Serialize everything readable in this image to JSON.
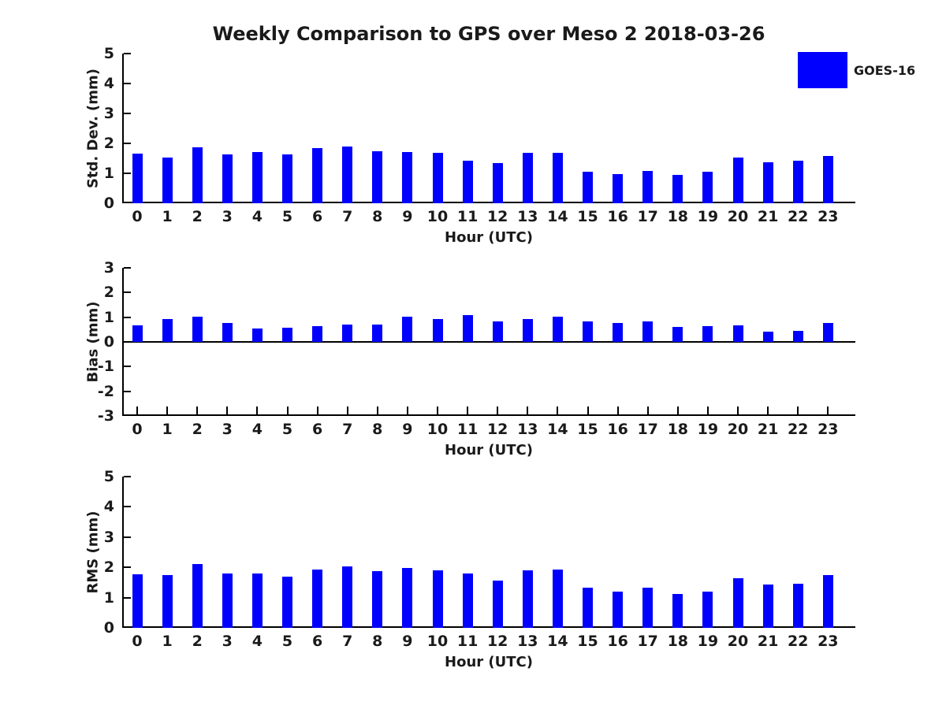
{
  "title": "Weekly Comparison to GPS over Meso 2 2018-03-26",
  "legend": {
    "label": "GOES-16",
    "color": "#0000FF",
    "position": "top-right"
  },
  "colors": {
    "bar": "#0000FF",
    "axis": "#000000",
    "text": "#1a1a1a",
    "background": "#ffffff"
  },
  "chart_data": [
    {
      "type": "bar",
      "name": "std-dev",
      "title": "",
      "ylabel": "Std. Dev. (mm)",
      "xlabel": "Hour (UTC)",
      "ylim": [
        0,
        5
      ],
      "ytick_step": 1,
      "grid": false,
      "categories": [
        "0",
        "1",
        "2",
        "3",
        "4",
        "5",
        "6",
        "7",
        "8",
        "9",
        "10",
        "11",
        "12",
        "13",
        "14",
        "15",
        "16",
        "17",
        "18",
        "19",
        "20",
        "21",
        "22",
        "23"
      ],
      "values": [
        1.65,
        1.52,
        1.88,
        1.63,
        1.72,
        1.63,
        1.83,
        1.9,
        1.75,
        1.7,
        1.68,
        1.42,
        1.33,
        1.68,
        1.68,
        1.05,
        0.97,
        1.08,
        0.96,
        1.04,
        1.52,
        1.38,
        1.42,
        1.58
      ],
      "series_name": "GOES-16"
    },
    {
      "type": "bar",
      "name": "bias",
      "title": "",
      "ylabel": "Bias (mm)",
      "xlabel": "Hour (UTC)",
      "ylim": [
        -3,
        3
      ],
      "ytick_step": 1,
      "grid": false,
      "categories": [
        "0",
        "1",
        "2",
        "3",
        "4",
        "5",
        "6",
        "7",
        "8",
        "9",
        "10",
        "11",
        "12",
        "13",
        "14",
        "15",
        "16",
        "17",
        "18",
        "19",
        "20",
        "21",
        "22",
        "23"
      ],
      "values": [
        0.67,
        0.93,
        1.01,
        0.78,
        0.53,
        0.58,
        0.64,
        0.7,
        0.7,
        1.01,
        0.93,
        1.07,
        0.84,
        0.92,
        1.02,
        0.82,
        0.77,
        0.82,
        0.61,
        0.63,
        0.67,
        0.43,
        0.46,
        0.76
      ],
      "series_name": "GOES-16"
    },
    {
      "type": "bar",
      "name": "rms",
      "title": "",
      "ylabel": "RMS (mm)",
      "xlabel": "Hour (UTC)",
      "ylim": [
        0,
        5
      ],
      "ytick_step": 1,
      "grid": false,
      "categories": [
        "0",
        "1",
        "2",
        "3",
        "4",
        "5",
        "6",
        "7",
        "8",
        "9",
        "10",
        "11",
        "12",
        "13",
        "14",
        "15",
        "16",
        "17",
        "18",
        "19",
        "20",
        "21",
        "22",
        "23"
      ],
      "values": [
        1.78,
        1.75,
        2.12,
        1.8,
        1.79,
        1.7,
        1.92,
        2.02,
        1.87,
        1.97,
        1.9,
        1.8,
        1.55,
        1.91,
        1.93,
        1.34,
        1.2,
        1.34,
        1.13,
        1.2,
        1.64,
        1.42,
        1.46,
        1.74
      ],
      "series_name": "GOES-16"
    }
  ]
}
